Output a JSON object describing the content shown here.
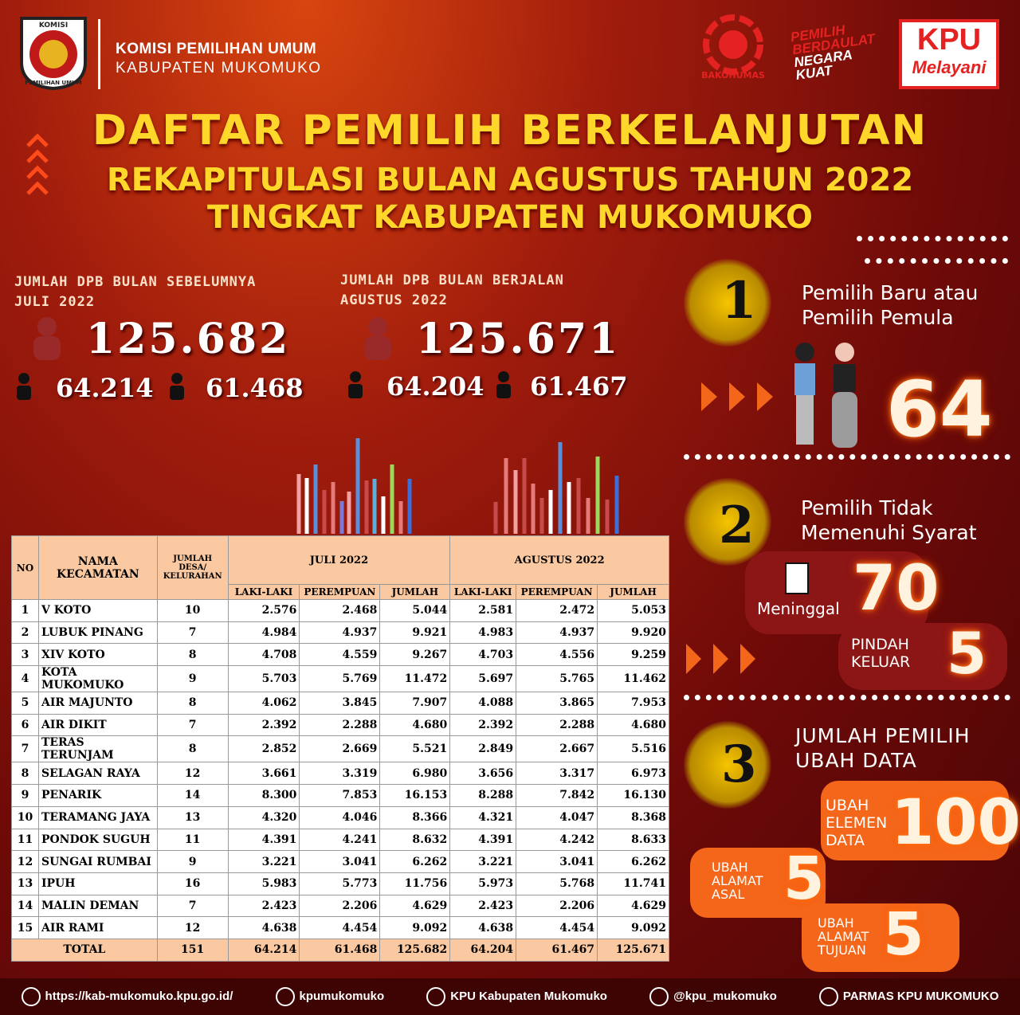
{
  "header": {
    "logo_text_top": "KOMISI",
    "logo_text_bottom": "PEMILIHAN UMUM",
    "org_line1": "KOMISI PEMILIHAN UMUM",
    "org_line2": "KABUPATEN MUKOMUKO",
    "badge_bakohumas": "BAKOHUMAS",
    "badge_slogan": [
      "PEMILIH",
      "BERDAULAT",
      "NEGARA",
      "KUAT"
    ],
    "badge_kpu": "KPU",
    "badge_melayani": "Melayani"
  },
  "title": "DAFTAR PEMILIH BERKELANJUTAN",
  "subtitle1": "REKAPITULASI BULAN AGUSTUS TAHUN 2022",
  "subtitle2": "TINGKAT KABUPATEN MUKOMUKO",
  "summary": [
    {
      "label": "JUMLAH DPB BULAN SEBELUMNYA",
      "period": "JULI 2022",
      "total": "125.682",
      "male": "64.214",
      "female": "61.468"
    },
    {
      "label": "JUMLAH DPB BULAN BERJALAN",
      "period": "AGUSTUS 2022",
      "total": "125.671",
      "male": "64.204",
      "female": "61.467"
    }
  ],
  "panels": [
    {
      "number": "1",
      "label": [
        "Pemilih Baru atau",
        "Pemilih Pemula"
      ],
      "value": "64"
    },
    {
      "number": "2",
      "label": [
        "Pemilih Tidak",
        "Memenuhi Syarat"
      ],
      "items": [
        {
          "label": [
            "Meninggal"
          ],
          "value": "70"
        },
        {
          "label": [
            "PINDAH",
            "KELUAR"
          ],
          "value": "5"
        }
      ]
    },
    {
      "number": "3",
      "label": [
        "JUMLAH PEMILIH",
        "UBAH DATA"
      ],
      "items": [
        {
          "label": [
            "UBAH",
            "ELEMEN",
            "DATA"
          ],
          "value": "100"
        },
        {
          "label": [
            "UBAH",
            "ALAMAT",
            "ASAL"
          ],
          "value": "5"
        },
        {
          "label": [
            "UBAH",
            "ALAMAT",
            "TUJUAN"
          ],
          "value": "5"
        }
      ]
    }
  ],
  "table": {
    "header": {
      "no": "NO",
      "name": [
        "NAMA",
        "KECAMATAN"
      ],
      "villages": [
        "JUMLAH",
        "DESA/",
        "KELURAHAN"
      ],
      "july": "JULI 2022",
      "august": "AGUSTUS 2022",
      "male": "LAKI-LAKI",
      "female": "PEREMPUAN",
      "total": "JUMLAH"
    },
    "rows": [
      [
        1,
        "V KOTO",
        10,
        "2.576",
        "2.468",
        "5.044",
        "2.581",
        "2.472",
        "5.053"
      ],
      [
        2,
        "LUBUK PINANG",
        7,
        "4.984",
        "4.937",
        "9.921",
        "4.983",
        "4.937",
        "9.920"
      ],
      [
        3,
        "XIV KOTO",
        8,
        "4.708",
        "4.559",
        "9.267",
        "4.703",
        "4.556",
        "9.259"
      ],
      [
        4,
        "KOTA MUKOMUKO",
        9,
        "5.703",
        "5.769",
        "11.472",
        "5.697",
        "5.765",
        "11.462"
      ],
      [
        5,
        "AIR MAJUNTO",
        8,
        "4.062",
        "3.845",
        "7.907",
        "4.088",
        "3.865",
        "7.953"
      ],
      [
        6,
        "AIR DIKIT",
        7,
        "2.392",
        "2.288",
        "4.680",
        "2.392",
        "2.288",
        "4.680"
      ],
      [
        7,
        "TERAS TERUNJAM",
        8,
        "2.852",
        "2.669",
        "5.521",
        "2.849",
        "2.667",
        "5.516"
      ],
      [
        8,
        "SELAGAN RAYA",
        12,
        "3.661",
        "3.319",
        "6.980",
        "3.656",
        "3.317",
        "6.973"
      ],
      [
        9,
        "PENARIK",
        14,
        "8.300",
        "7.853",
        "16.153",
        "8.288",
        "7.842",
        "16.130"
      ],
      [
        10,
        "TERAMANG JAYA",
        13,
        "4.320",
        "4.046",
        "8.366",
        "4.321",
        "4.047",
        "8.368"
      ],
      [
        11,
        "PONDOK SUGUH",
        11,
        "4.391",
        "4.241",
        "8.632",
        "4.391",
        "4.242",
        "8.633"
      ],
      [
        12,
        "SUNGAI RUMBAI",
        9,
        "3.221",
        "3.041",
        "6.262",
        "3.221",
        "3.041",
        "6.262"
      ],
      [
        13,
        "IPUH",
        16,
        "5.983",
        "5.773",
        "11.756",
        "5.973",
        "5.768",
        "11.741"
      ],
      [
        14,
        "MALIN DEMAN",
        7,
        "2.423",
        "2.206",
        "4.629",
        "2.423",
        "2.206",
        "4.629"
      ],
      [
        15,
        "AIR RAMI",
        12,
        "4.638",
        "4.454",
        "9.092",
        "4.638",
        "4.454",
        "9.092"
      ]
    ],
    "total": [
      "TOTAL",
      151,
      "64.214",
      "61.468",
      "125.682",
      "64.204",
      "61.467",
      "125.671"
    ]
  },
  "footer": [
    "https://kab-mukomuko.kpu.go.id/",
    "kpumukomuko",
    "KPU Kabupaten Mukomuko",
    "@kpu_mukomuko",
    "PARMAS KPU MUKOMUKO"
  ]
}
